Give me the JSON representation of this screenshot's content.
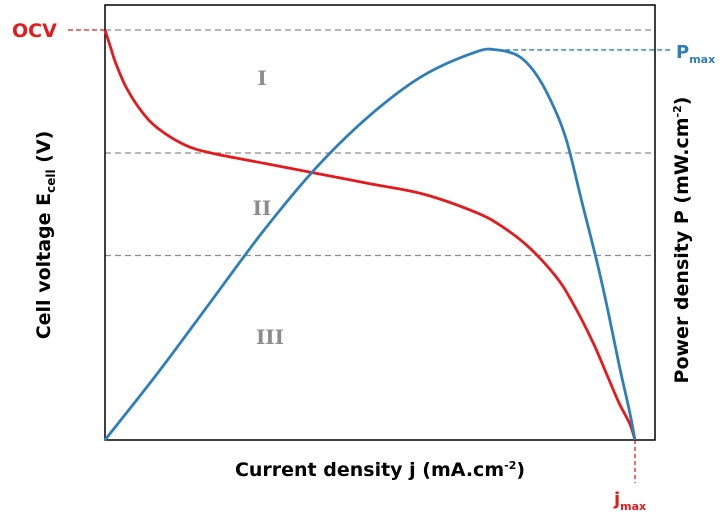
{
  "chart_data": {
    "type": "line",
    "xlabel": {
      "main": "Current density j (mA.cm",
      "sup": "-2",
      "tail": ")"
    },
    "ylabel_left": {
      "main": "Cell voltage E",
      "sub": "cell",
      "tail": " (V)"
    },
    "ylabel_right": {
      "main": "Power density P (mW.cm",
      "sup": "-2",
      "tail": ")"
    },
    "annotations": {
      "ocv": "OCV",
      "pmax": {
        "main": "P",
        "sub": "max"
      },
      "jmax": {
        "main": "j",
        "sub": "max"
      }
    },
    "regions": [
      "I",
      "II",
      "III"
    ],
    "colors": {
      "voltage": "#e41a1c",
      "power": "#2c7fb8",
      "guide": "#8c8c8c",
      "axis": "#000000"
    },
    "grid": false,
    "xlim": [
      0,
      1
    ],
    "ylim": [
      0,
      1
    ],
    "region_boundaries": [
      0.7,
      0.45
    ],
    "series": [
      {
        "x": [
          0,
          0.01,
          0.02,
          0.04,
          0.07,
          0.1,
          0.15,
          0.2,
          0.3,
          0.4,
          0.5,
          0.6,
          0.7,
          0.75,
          0.8,
          0.85,
          0.88,
          0.92,
          0.95,
          0.97,
          0.99,
          1.0
        ],
        "values": [
          1.0,
          0.96,
          0.92,
          0.86,
          0.8,
          0.76,
          0.72,
          0.7,
          0.675,
          0.65,
          0.625,
          0.6,
          0.555,
          0.52,
          0.47,
          0.4,
          0.34,
          0.24,
          0.15,
          0.09,
          0.04,
          0.0
        ]
      },
      {
        "x": [
          0,
          0.1,
          0.2,
          0.3,
          0.4,
          0.5,
          0.6,
          0.7,
          0.74,
          0.78,
          0.81,
          0.84,
          0.87,
          0.9,
          0.93,
          0.95,
          0.97,
          0.99,
          1.0
        ],
        "values": [
          0.0,
          0.17,
          0.35,
          0.53,
          0.69,
          0.82,
          0.92,
          0.98,
          0.985,
          0.97,
          0.93,
          0.86,
          0.76,
          0.6,
          0.44,
          0.32,
          0.19,
          0.07,
          0.0
        ]
      }
    ]
  }
}
